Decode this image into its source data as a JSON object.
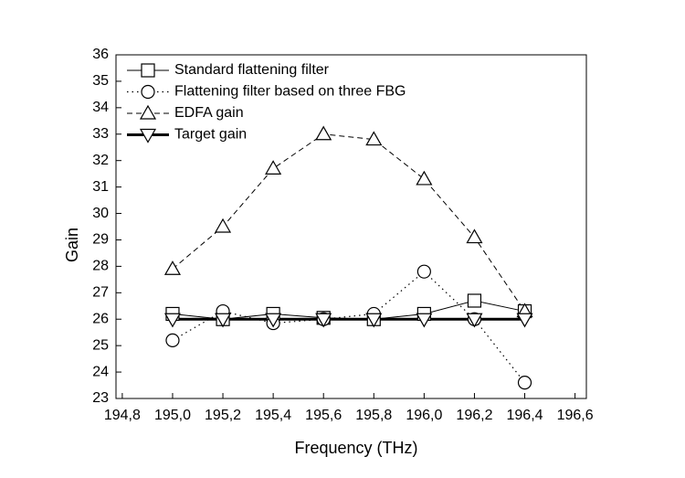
{
  "chart_data": {
    "type": "line",
    "x_label": "Frequency (THz)",
    "y_label": "Gain",
    "x": [
      195.0,
      195.2,
      195.4,
      195.6,
      195.8,
      196.0,
      196.2,
      196.4
    ],
    "series": [
      {
        "name": "Standard flattening filter",
        "color": "#000000",
        "line_style": "solid",
        "line_width": 1,
        "marker": "square",
        "values": [
          26.2,
          26.0,
          26.2,
          26.05,
          26.0,
          26.2,
          26.7,
          26.3
        ]
      },
      {
        "name": "Flattening filter based on three FBG",
        "color": "#000000",
        "line_style": "dotted",
        "line_width": 1.2,
        "marker": "circle",
        "values": [
          25.2,
          26.3,
          25.85,
          26.0,
          26.2,
          27.8,
          26.0,
          23.6
        ]
      },
      {
        "name": "EDFA gain",
        "color": "#000000",
        "line_style": "dashed",
        "line_width": 1,
        "marker": "triangle-up",
        "values": [
          27.9,
          29.5,
          31.7,
          33.0,
          32.8,
          31.3,
          29.1,
          26.3
        ]
      },
      {
        "name": "Target gain",
        "color": "#000000",
        "line_style": "solid",
        "line_width": 3,
        "marker": "triangle-down",
        "values": [
          26,
          26,
          26,
          26,
          26,
          26,
          26,
          26
        ]
      }
    ],
    "xlim": [
      194.775,
      196.645
    ],
    "xticks": [
      {
        "value": 194.8,
        "label": "194,8"
      },
      {
        "value": 195.0,
        "label": "195,0"
      },
      {
        "value": 195.2,
        "label": "195,2"
      },
      {
        "value": 195.4,
        "label": "195,4"
      },
      {
        "value": 195.6,
        "label": "195,6"
      },
      {
        "value": 195.8,
        "label": "195,8"
      },
      {
        "value": 196.0,
        "label": "196,0"
      },
      {
        "value": 196.2,
        "label": "196,2"
      },
      {
        "value": 196.4,
        "label": "196,4"
      },
      {
        "value": 196.6,
        "label": "196,6"
      }
    ],
    "ylim": [
      23,
      36
    ],
    "yticks": [
      23,
      24,
      25,
      26,
      27,
      28,
      29,
      30,
      31,
      32,
      33,
      34,
      35,
      36
    ],
    "grid": false,
    "legend": "upper left"
  }
}
